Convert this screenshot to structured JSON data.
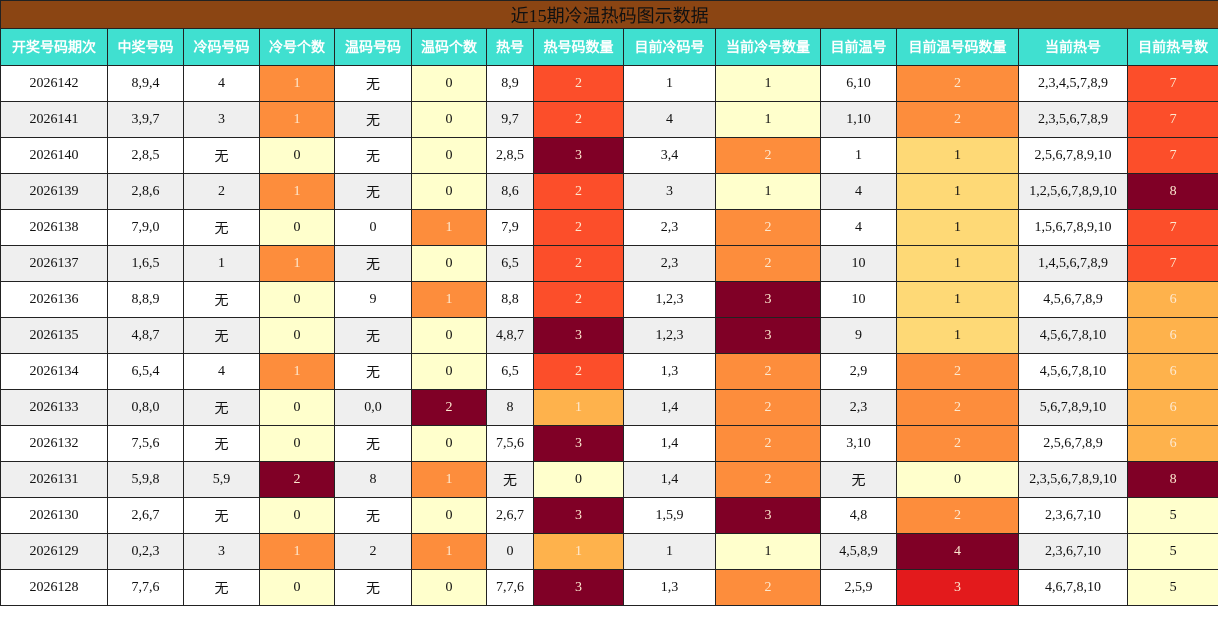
{
  "table": {
    "title": "近15期冷温热码图示数据",
    "header": [
      "开奖号码期次",
      "中奖号码",
      "冷码号码",
      "冷号个数",
      "温码号码",
      "温码个数",
      "热号",
      "热号码数量",
      "目前冷码号",
      "当前冷号数量",
      "目前温号",
      "目前温号码数量",
      "当前热号",
      "目前热号数"
    ],
    "heat_palette": [
      "#ffffcc",
      "#ffeda0",
      "#fed976",
      "#feb24c",
      "#fd8d3c",
      "#fc4e2a",
      "#e31a1c",
      "#bd0026",
      "#800026"
    ],
    "rows": [
      [
        "2026142",
        "8,9,4",
        "4",
        1,
        "无",
        0,
        "8,9",
        2,
        "1",
        1,
        "6,10",
        2,
        "2,3,4,5,7,8,9",
        7
      ],
      [
        "2026141",
        "3,9,7",
        "3",
        1,
        "无",
        0,
        "9,7",
        2,
        "4",
        1,
        "1,10",
        2,
        "2,3,5,6,7,8,9",
        7
      ],
      [
        "2026140",
        "2,8,5",
        "无",
        0,
        "无",
        0,
        "2,8,5",
        3,
        "3,4",
        2,
        "1",
        1,
        "2,5,6,7,8,9,10",
        7
      ],
      [
        "2026139",
        "2,8,6",
        "2",
        1,
        "无",
        0,
        "8,6",
        2,
        "3",
        1,
        "4",
        1,
        "1,2,5,6,7,8,9,10",
        8
      ],
      [
        "2026138",
        "7,9,0",
        "无",
        0,
        "0",
        1,
        "7,9",
        2,
        "2,3",
        2,
        "4",
        1,
        "1,5,6,7,8,9,10",
        7
      ],
      [
        "2026137",
        "1,6,5",
        "1",
        1,
        "无",
        0,
        "6,5",
        2,
        "2,3",
        2,
        "10",
        1,
        "1,4,5,6,7,8,9",
        7
      ],
      [
        "2026136",
        "8,8,9",
        "无",
        0,
        "9",
        1,
        "8,8",
        2,
        "1,2,3",
        3,
        "10",
        1,
        "4,5,6,7,8,9",
        6
      ],
      [
        "2026135",
        "4,8,7",
        "无",
        0,
        "无",
        0,
        "4,8,7",
        3,
        "1,2,3",
        3,
        "9",
        1,
        "4,5,6,7,8,10",
        6
      ],
      [
        "2026134",
        "6,5,4",
        "4",
        1,
        "无",
        0,
        "6,5",
        2,
        "1,3",
        2,
        "2,9",
        2,
        "4,5,6,7,8,10",
        6
      ],
      [
        "2026133",
        "0,8,0",
        "无",
        0,
        "0,0",
        2,
        "8",
        1,
        "1,4",
        2,
        "2,3",
        2,
        "5,6,7,8,9,10",
        6
      ],
      [
        "2026132",
        "7,5,6",
        "无",
        0,
        "无",
        0,
        "7,5,6",
        3,
        "1,4",
        2,
        "3,10",
        2,
        "2,5,6,7,8,9",
        6
      ],
      [
        "2026131",
        "5,9,8",
        "5,9",
        2,
        "8",
        1,
        "无",
        0,
        "1,4",
        2,
        "无",
        0,
        "2,3,5,6,7,8,9,10",
        8
      ],
      [
        "2026130",
        "2,6,7",
        "无",
        0,
        "无",
        0,
        "2,6,7",
        3,
        "1,5,9",
        3,
        "4,8",
        2,
        "2,3,6,7,10",
        5
      ],
      [
        "2026129",
        "0,2,3",
        "3",
        1,
        "2",
        1,
        "0",
        1,
        "1",
        1,
        "4,5,8,9",
        4,
        "2,3,6,7,10",
        5
      ],
      [
        "2026128",
        "7,7,6",
        "无",
        0,
        "无",
        0,
        "7,7,6",
        3,
        "1,3",
        2,
        "2,5,9",
        3,
        "4,6,7,8,10",
        5
      ]
    ]
  }
}
